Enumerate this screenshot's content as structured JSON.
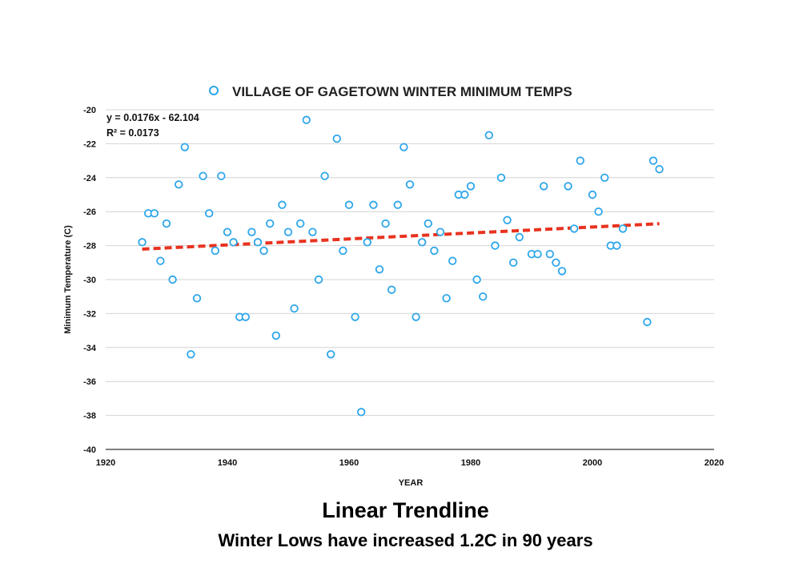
{
  "chart_data": {
    "type": "scatter",
    "title": "VILLAGE OF GAGETOWN WINTER MINIMUM TEMPS",
    "xlabel": "YEAR",
    "ylabel": "Minimum Temperature (C)",
    "xlim": [
      1920,
      2020
    ],
    "ylim": [
      -40,
      -20
    ],
    "xticks": [
      1920,
      1940,
      1960,
      1980,
      2000,
      2020
    ],
    "yticks": [
      -20,
      -22,
      -24,
      -26,
      -28,
      -30,
      -32,
      -34,
      -36,
      -38,
      -40
    ],
    "grid": "horizontal",
    "legend": "top-center",
    "trendline": {
      "equation": "y = 0.0176x - 62.104",
      "r_squared": "R² = 0.0173",
      "slope": 0.0176,
      "intercept": -62.104,
      "x_range": [
        1926,
        2011
      ],
      "color": "#e8321f",
      "style": "dashed"
    },
    "series": [
      {
        "name": "VILLAGE OF GAGETOWN WINTER MINIMUM TEMPS",
        "color": "#2ea6ea",
        "points": [
          [
            1926,
            -27.8
          ],
          [
            1927,
            -26.1
          ],
          [
            1928,
            -26.1
          ],
          [
            1929,
            -28.9
          ],
          [
            1930,
            -26.7
          ],
          [
            1931,
            -30.0
          ],
          [
            1932,
            -24.4
          ],
          [
            1933,
            -22.2
          ],
          [
            1934,
            -34.4
          ],
          [
            1935,
            -31.1
          ],
          [
            1936,
            -23.9
          ],
          [
            1937,
            -26.1
          ],
          [
            1938,
            -28.3
          ],
          [
            1939,
            -23.9
          ],
          [
            1940,
            -27.2
          ],
          [
            1941,
            -27.8
          ],
          [
            1942,
            -32.2
          ],
          [
            1943,
            -32.2
          ],
          [
            1944,
            -27.2
          ],
          [
            1945,
            -27.8
          ],
          [
            1946,
            -28.3
          ],
          [
            1947,
            -26.7
          ],
          [
            1948,
            -33.3
          ],
          [
            1949,
            -25.6
          ],
          [
            1950,
            -27.2
          ],
          [
            1951,
            -31.7
          ],
          [
            1952,
            -26.7
          ],
          [
            1953,
            -20.6
          ],
          [
            1954,
            -27.2
          ],
          [
            1955,
            -30.0
          ],
          [
            1956,
            -23.9
          ],
          [
            1957,
            -34.4
          ],
          [
            1958,
            -21.7
          ],
          [
            1959,
            -28.3
          ],
          [
            1960,
            -25.6
          ],
          [
            1961,
            -32.2
          ],
          [
            1962,
            -37.8
          ],
          [
            1963,
            -27.8
          ],
          [
            1964,
            -25.6
          ],
          [
            1965,
            -29.4
          ],
          [
            1966,
            -26.7
          ],
          [
            1967,
            -30.6
          ],
          [
            1968,
            -25.6
          ],
          [
            1969,
            -22.2
          ],
          [
            1970,
            -24.4
          ],
          [
            1971,
            -32.2
          ],
          [
            1972,
            -27.8
          ],
          [
            1973,
            -26.7
          ],
          [
            1974,
            -28.3
          ],
          [
            1975,
            -27.2
          ],
          [
            1976,
            -31.1
          ],
          [
            1977,
            -28.9
          ],
          [
            1978,
            -25.0
          ],
          [
            1979,
            -25.0
          ],
          [
            1980,
            -24.5
          ],
          [
            1981,
            -30.0
          ],
          [
            1982,
            -31.0
          ],
          [
            1983,
            -21.5
          ],
          [
            1984,
            -28.0
          ],
          [
            1985,
            -24.0
          ],
          [
            1986,
            -26.5
          ],
          [
            1987,
            -29.0
          ],
          [
            1988,
            -27.5
          ],
          [
            1990,
            -28.5
          ],
          [
            1991,
            -28.5
          ],
          [
            1992,
            -24.5
          ],
          [
            1993,
            -28.5
          ],
          [
            1994,
            -29.0
          ],
          [
            1995,
            -29.5
          ],
          [
            1996,
            -24.5
          ],
          [
            1997,
            -27.0
          ],
          [
            1998,
            -23.0
          ],
          [
            2000,
            -25.0
          ],
          [
            2001,
            -26.0
          ],
          [
            2002,
            -24.0
          ],
          [
            2003,
            -28.0
          ],
          [
            2004,
            -28.0
          ],
          [
            2005,
            -27.0
          ],
          [
            2009,
            -32.5
          ],
          [
            2010,
            -23.0
          ],
          [
            2011,
            -23.5
          ]
        ]
      }
    ]
  },
  "captions": {
    "heading": "Linear Trendline",
    "subheading": "Winter Lows have increased 1.2C in 90 years"
  }
}
